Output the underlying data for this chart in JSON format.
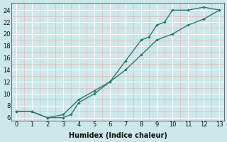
{
  "line1_x": [
    0,
    1,
    2,
    3,
    4,
    5,
    6,
    7,
    8,
    8.5,
    9,
    9.5,
    10,
    11,
    12,
    13
  ],
  "line1_y": [
    7,
    7,
    6,
    6.5,
    9.0,
    10.5,
    12.0,
    15.5,
    19.0,
    19.5,
    21.5,
    22.0,
    24.0,
    24.0,
    24.5,
    24.0
  ],
  "line2_x": [
    0,
    1,
    2,
    3,
    3.5,
    4,
    5,
    6,
    7,
    8,
    9,
    10,
    11,
    12,
    13
  ],
  "line2_y": [
    7,
    7,
    6,
    6.0,
    6.5,
    8.5,
    10.0,
    12.0,
    14.0,
    16.5,
    19.0,
    20.0,
    21.5,
    22.5,
    24.0
  ],
  "line_color": "#2a7a6a",
  "bg_color": "#cce8e8",
  "grid_major_color": "#ffffff",
  "grid_minor_color": "#ddbcbc",
  "xlabel": "Humidex (Indice chaleur)",
  "xlim": [
    -0.3,
    13.3
  ],
  "ylim": [
    5.5,
    25.2
  ],
  "xticks": [
    0,
    1,
    2,
    3,
    4,
    5,
    6,
    7,
    8,
    9,
    10,
    11,
    12,
    13
  ],
  "yticks": [
    6,
    8,
    10,
    12,
    14,
    16,
    18,
    20,
    22,
    24
  ],
  "xlabel_fontsize": 7.0,
  "tick_fontsize": 6.0,
  "linewidth": 1.0,
  "markersize": 2.2
}
